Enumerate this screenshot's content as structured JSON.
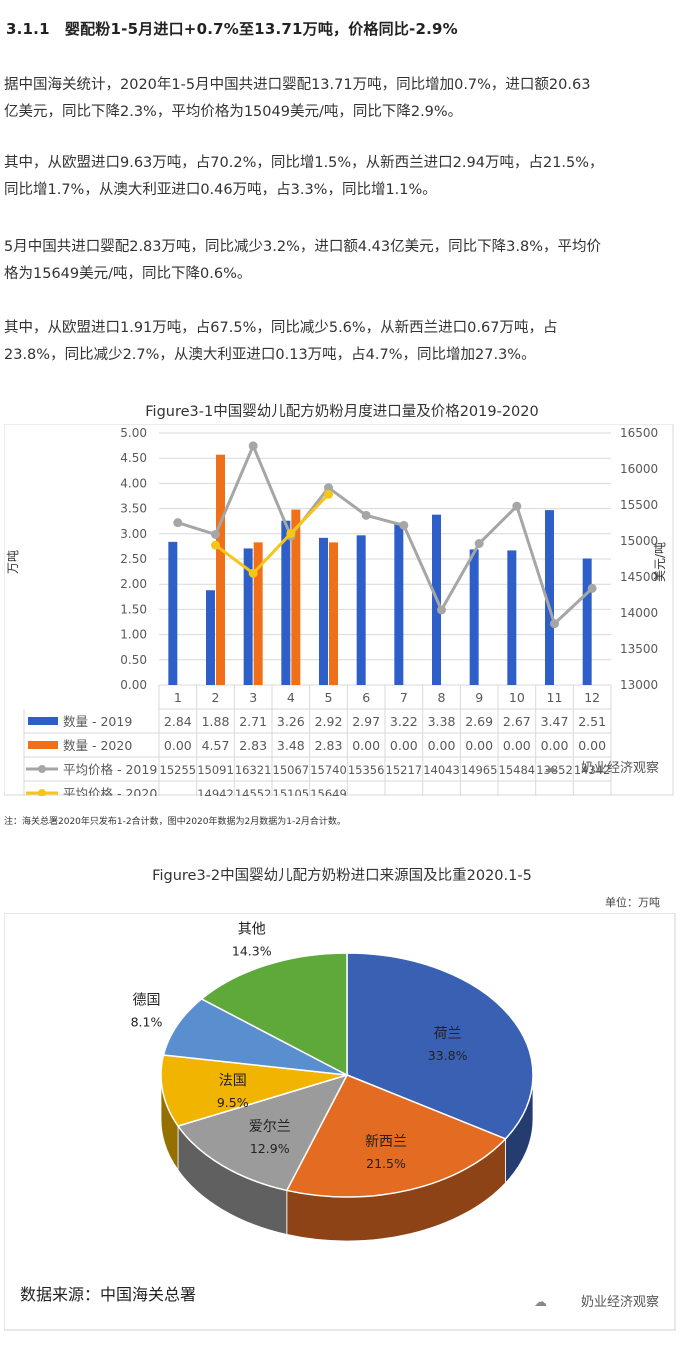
{
  "heading": "3.1.1　婴配粉1-5月进口+0.7%至13.71万吨，价格同比-2.9%",
  "paragraphs": [
    [
      "据中国海关统计，2020年1-5月中国共进口婴配13.71万吨，同比增加0.7%，进口额20.63",
      "亿美元，同比下降2.3%，平均价格为15049美元/吨，同比下降2.9%。"
    ],
    [
      "其中，从欧盟进口9.63万吨，占70.2%，同比增1.5%，从新西兰进口2.94万吨，占21.5%，",
      "同比增1.7%，从澳大利亚进口0.46万吨，占3.3%，同比增1.1%。"
    ],
    [
      "5月中国共进口婴配2.83万吨，同比减少3.2%，进口额4.43亿美元，同比下降3.8%，平均价",
      "格为15649美元/吨，同比下降0.6%。"
    ],
    [
      "其中，从欧盟进口1.91万吨，占67.5%，同比减少5.6%，从新西兰进口0.67万吨，占",
      "23.8%，同比减少2.7%，从澳大利亚进口0.13万吨，占4.7%，同比增加27.3%。"
    ]
  ],
  "figure1": {
    "title": "Figure3-1中国婴幼儿配方奶粉月度进口量及价格2019-2020",
    "note": "注：海关总署2020年只发布1-2合计数，图中2020年数据为2月数据为1-2月合计数。",
    "watermark": "奶业经济观察"
  },
  "figure2": {
    "title": "Figure3-2中国婴幼儿配方奶粉进口来源国及比重2020.1-5",
    "unit": "单位：万吨",
    "source": "数据来源：中国海关总署",
    "watermark": "奶业经济观察"
  },
  "chart_data": [
    {
      "type": "bar+line",
      "categories": [
        "1",
        "2",
        "3",
        "4",
        "5",
        "6",
        "7",
        "8",
        "9",
        "10",
        "11",
        "12"
      ],
      "ylabel": "万吨",
      "y2label": "美元/吨",
      "ylim": [
        0,
        5
      ],
      "y2lim": [
        13000,
        16500
      ],
      "yticks": [
        "0.00",
        "0.50",
        "1.00",
        "1.50",
        "2.00",
        "2.50",
        "3.00",
        "3.50",
        "4.00",
        "4.50",
        "5.00"
      ],
      "y2ticks": [
        "13000",
        "13500",
        "14000",
        "14500",
        "15000",
        "15500",
        "16000",
        "16500"
      ],
      "grid": true,
      "legend": "data-table",
      "series": [
        {
          "name": "数量 - 2019",
          "kind": "bar",
          "axis": "left",
          "color": "#2e5fc9",
          "values": [
            2.84,
            1.88,
            2.71,
            3.26,
            2.92,
            2.97,
            3.22,
            3.38,
            2.69,
            2.67,
            3.47,
            2.51
          ],
          "labels": [
            "2.84",
            "1.88",
            "2.71",
            "3.26",
            "2.92",
            "2.97",
            "3.22",
            "3.38",
            "2.69",
            "2.67",
            "3.47",
            "2.51"
          ]
        },
        {
          "name": "数量 - 2020",
          "kind": "bar",
          "axis": "left",
          "color": "#f07019",
          "values": [
            0,
            4.57,
            2.83,
            3.48,
            2.83,
            0,
            0,
            0,
            0,
            0,
            0,
            0
          ],
          "labels": [
            "0.00",
            "4.57",
            "2.83",
            "3.48",
            "2.83",
            "0.00",
            "0.00",
            "0.00",
            "0.00",
            "0.00",
            "0.00",
            "0.00"
          ]
        },
        {
          "name": "平均价格 - 2019",
          "kind": "line",
          "axis": "right",
          "color": "#a6a6a6",
          "values": [
            15255,
            15091,
            16321,
            15067,
            15740,
            15356,
            15217,
            14043,
            14965,
            15484,
            13852,
            14342
          ],
          "labels": [
            "15255",
            "15091",
            "16321",
            "15067",
            "15740",
            "15356",
            "15217",
            "14043",
            "14965",
            "15484",
            "13852",
            "14342"
          ]
        },
        {
          "name": "平均价格 - 2020",
          "kind": "line",
          "axis": "right",
          "color": "#f5c518",
          "values": [
            null,
            14942,
            14552,
            15105,
            15649,
            null,
            null,
            null,
            null,
            null,
            null,
            null
          ],
          "labels": [
            "",
            "14942",
            "14552",
            "15105",
            "15649",
            "",
            "",
            "",
            "",
            "",
            "",
            ""
          ]
        }
      ]
    },
    {
      "type": "pie",
      "style": "3d",
      "slices": [
        {
          "label": "荷兰",
          "value": 33.8,
          "text": "33.8%",
          "color": "#3a60b3"
        },
        {
          "label": "新西兰",
          "value": 21.5,
          "text": "21.5%",
          "color": "#e36c22"
        },
        {
          "label": "爱尔兰",
          "value": 12.9,
          "text": "12.9%",
          "color": "#9b9b9b"
        },
        {
          "label": "法国",
          "value": 9.5,
          "text": "9.5%",
          "color": "#f1b400"
        },
        {
          "label": "德国",
          "value": 8.1,
          "text": "8.1%",
          "color": "#5a8fcf"
        },
        {
          "label": "其他",
          "value": 14.3,
          "text": "14.3%",
          "color": "#5fa83a"
        }
      ]
    }
  ]
}
